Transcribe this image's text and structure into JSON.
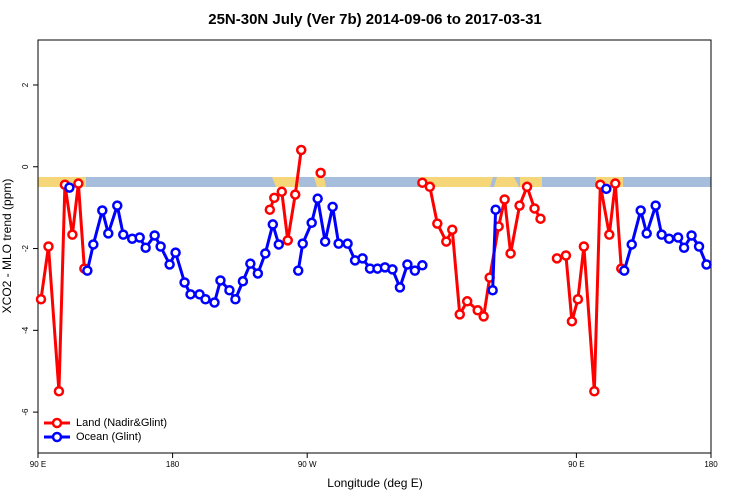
{
  "chart_data": {
    "type": "line",
    "title": "25N-30N July (Ver 7b)   2014-09-06 to 2017-03-31",
    "x_label": "Longitude (deg E)",
    "y_label": "XCO2 - MLO trend (ppm)",
    "xlim": [
      90,
      540
    ],
    "ylim": [
      -7,
      3.1
    ],
    "xticks": [
      {
        "value": 90,
        "label": "90 E"
      },
      180,
      {
        "value": 270,
        "label": "90 W"
      },
      {
        "value": 450,
        "label": "90 E"
      },
      {
        "value": 540,
        "label": "180"
      }
    ],
    "yticks": [
      2,
      0,
      -2,
      -4,
      -6
    ],
    "legend": "bottom-left",
    "series": [
      {
        "name": "Land (Nadir&Glint)",
        "color": "#ff0000",
        "x": [
          92,
          97,
          104,
          108,
          113,
          117,
          121,
          null,
          245,
          248,
          253,
          257,
          262,
          266,
          null,
          279,
          null,
          347,
          352,
          357,
          363,
          367,
          372,
          377,
          384,
          388,
          392,
          398,
          402,
          406,
          412,
          417,
          422,
          426,
          null,
          437,
          443,
          447,
          451,
          455,
          462,
          466,
          472,
          476,
          480
        ],
        "values": [
          -3.24,
          -1.95,
          -5.49,
          -0.44,
          -1.66,
          -0.41,
          -2.49,
          null,
          -1.05,
          -0.76,
          -0.61,
          -1.8,
          -0.68,
          0.41,
          null,
          -0.15,
          null,
          -0.39,
          -0.49,
          -1.39,
          -1.83,
          -1.54,
          -3.61,
          -3.29,
          -3.51,
          -3.66,
          -2.71,
          -1.46,
          -0.8,
          -2.12,
          -0.95,
          -0.49,
          -1.02,
          -1.27,
          null,
          -2.24,
          -2.17,
          -3.78,
          -3.24,
          -1.95,
          -5.49,
          -0.44,
          -1.66,
          -0.41,
          -2.49
        ]
      },
      {
        "name": "Ocean (Glint)",
        "color": "#0000ff",
        "x": [
          111,
          null,
          123,
          127,
          133,
          137,
          143,
          147,
          153,
          158,
          162,
          168,
          172,
          178,
          182,
          188,
          192,
          198,
          202,
          208,
          212,
          218,
          222,
          227,
          232,
          237,
          242,
          247,
          251,
          null,
          264,
          267,
          273,
          277,
          282,
          287,
          291,
          297,
          302,
          307,
          312,
          317,
          322,
          327,
          332,
          337,
          342,
          347,
          null,
          394,
          396,
          null,
          470,
          null,
          482,
          487,
          493,
          497,
          503,
          507,
          512,
          518,
          522,
          527,
          532,
          537
        ],
        "values": [
          -0.51,
          null,
          -2.54,
          -1.9,
          -1.07,
          -1.63,
          -0.95,
          -1.66,
          -1.76,
          -1.73,
          -1.98,
          -1.68,
          -1.95,
          -2.39,
          -2.1,
          -2.83,
          -3.12,
          -3.12,
          -3.24,
          -3.32,
          -2.78,
          -3.02,
          -3.24,
          -2.8,
          -2.37,
          -2.61,
          -2.12,
          -1.41,
          -1.9,
          null,
          -2.54,
          -1.88,
          -1.37,
          -0.78,
          -1.83,
          -0.98,
          -1.88,
          -1.88,
          -2.29,
          -2.24,
          -2.49,
          -2.49,
          -2.46,
          -2.51,
          -2.95,
          -2.39,
          -2.54,
          -2.41,
          null,
          -3.02,
          -1.05,
          null,
          -0.54,
          null,
          -2.54,
          -1.9,
          -1.07,
          -1.63,
          -0.95,
          -1.66,
          -1.76,
          -1.73,
          -1.98,
          -1.68,
          -1.95,
          -2.39
        ]
      }
    ]
  }
}
